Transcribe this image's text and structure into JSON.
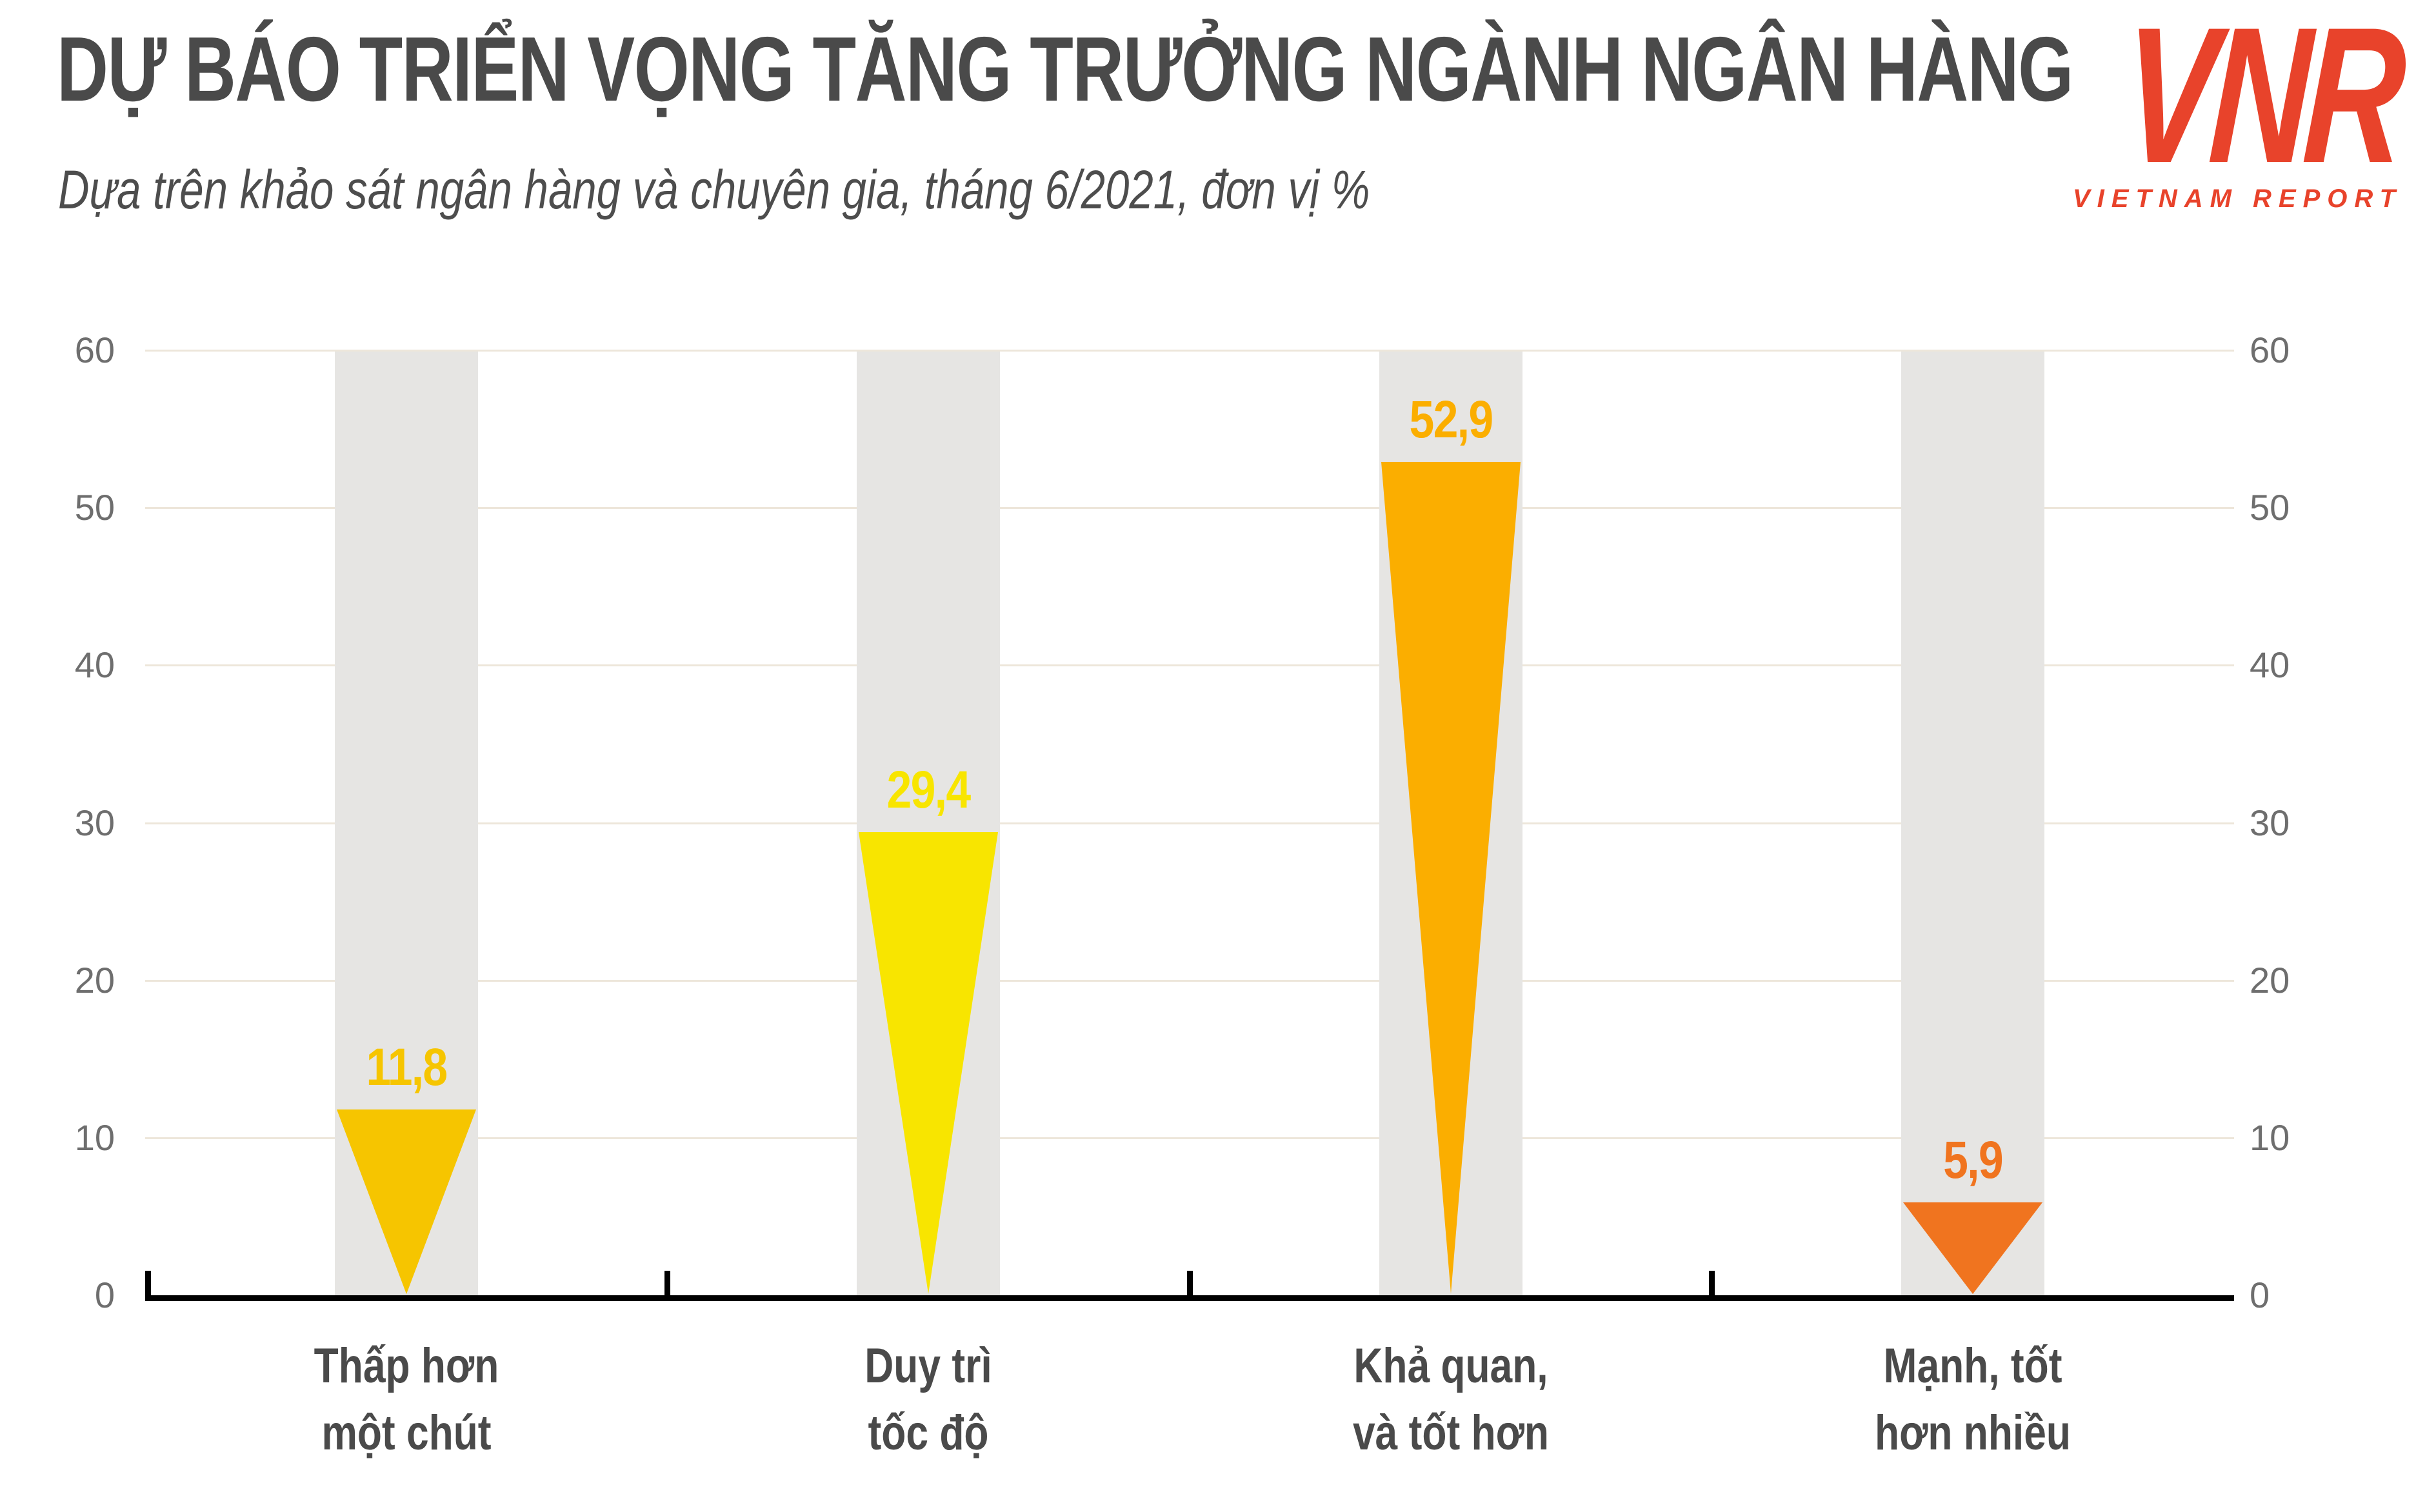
{
  "header": {
    "title": "DỰ BÁO TRIỂN VỌNG TĂNG TRƯỞNG NGÀNH NGÂN HÀNG",
    "subtitle": "Dựa trên khảo sát ngân hàng và chuyên gia, tháng 6/2021, đơn vị %"
  },
  "logo": {
    "mark": "VNR",
    "text": "VIETNAM REPORT",
    "color": "#E8432B"
  },
  "chart_data": {
    "type": "bar",
    "variant": "inverted-triangle-markers",
    "title": "DỰ BÁO TRIỂN VỌNG TĂNG TRƯỞNG NGÀNH NGÂN HÀNG",
    "subtitle": "Dựa trên khảo sát ngân hàng và chuyên gia, tháng 6/2021, đơn vị %",
    "unit": "%",
    "categories": [
      "Thấp hơn một chút",
      "Duy trì tốc độ",
      "Khả quan, và tốt hơn",
      "Mạnh, tốt hơn nhiều"
    ],
    "category_lines": [
      [
        "Thấp hơn",
        "một chút"
      ],
      [
        "Duy trì",
        "tốc độ"
      ],
      [
        "Khả quan,",
        "và tốt hơn"
      ],
      [
        "Mạnh, tốt",
        "hơn nhiều"
      ]
    ],
    "values": [
      11.8,
      29.4,
      52.9,
      5.9
    ],
    "value_labels": [
      "11,8",
      "29,4",
      "52,9",
      "5,9"
    ],
    "marker_colors": [
      "#F6C500",
      "#F8E500",
      "#FBAE00",
      "#F0741F"
    ],
    "ylim": [
      0,
      60
    ],
    "yticks": [
      0,
      10,
      20,
      30,
      40,
      50,
      60
    ],
    "ytick_labels": [
      "0",
      "10",
      "20",
      "30",
      "40",
      "50",
      "60"
    ],
    "axis_sides": "left-and-right",
    "grid": true,
    "legend": "none",
    "gridline_color": "#EDE6DA",
    "column_bg_color": "#E6E5E3",
    "axis_line_color": "#000000",
    "text_color": "#4A4A4A",
    "tick_text_color": "#6E6E6E"
  }
}
